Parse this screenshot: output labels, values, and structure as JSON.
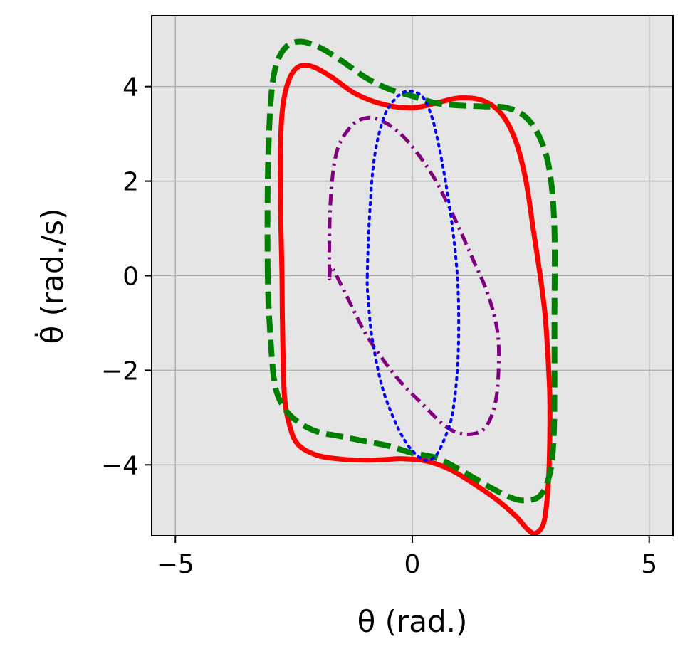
{
  "chart_data": {
    "type": "line",
    "title": "",
    "xlabel": "θ (rad.)",
    "ylabel": "θ̇ (rad./s)",
    "xlim": [
      -5.5,
      5.5
    ],
    "ylim": [
      -5.5,
      5.5
    ],
    "xticks": [
      -5,
      0,
      5
    ],
    "yticks": [
      -4,
      -2,
      0,
      2,
      4
    ],
    "xtick_labels": [
      "−5",
      "0",
      "5"
    ],
    "ytick_labels": [
      "−4",
      "−2",
      "0",
      "2",
      "4"
    ],
    "grid": true,
    "legend": "none",
    "background_color": "#e5e5e5",
    "grid_color": "#b0b0b0",
    "series": [
      {
        "color": "#ff0000",
        "style": "solid",
        "x": [
          -2.75,
          -2.78,
          -2.78,
          -2.73,
          -2.6,
          -2.4,
          -2.1,
          -1.7,
          -1.2,
          -0.6,
          0.0,
          0.5,
          1.0,
          1.5,
          1.9,
          2.2,
          2.4,
          2.55,
          2.7,
          2.8,
          2.85,
          2.9,
          2.9,
          2.87,
          2.78,
          2.6,
          2.42,
          2.2,
          1.8,
          1.3,
          0.8,
          0.3,
          -0.2,
          -0.6,
          -1.0,
          -1.5,
          -2.0,
          -2.4,
          -2.58,
          -2.7,
          -2.74,
          -2.75
        ],
        "y": [
          0.0,
          1.5,
          2.8,
          3.6,
          4.15,
          4.42,
          4.42,
          4.2,
          3.85,
          3.62,
          3.55,
          3.65,
          3.76,
          3.7,
          3.4,
          2.8,
          2.0,
          1.0,
          0.0,
          -0.8,
          -1.5,
          -2.5,
          -3.5,
          -4.4,
          -5.2,
          -5.45,
          -5.35,
          -5.1,
          -4.75,
          -4.4,
          -4.1,
          -3.92,
          -3.87,
          -3.89,
          -3.9,
          -3.88,
          -3.8,
          -3.58,
          -3.2,
          -2.5,
          -1.0,
          0.0
        ]
      },
      {
        "color": "#008000",
        "style": "dashed",
        "x": [
          -3.05,
          -3.05,
          -3.0,
          -2.9,
          -2.7,
          -2.4,
          -2.0,
          -1.5,
          -1.0,
          -0.5,
          0.0,
          0.5,
          1.0,
          1.5,
          2.0,
          2.4,
          2.7,
          2.9,
          3.0,
          3.0,
          3.0,
          2.98,
          2.9,
          2.7,
          2.4,
          2.1,
          1.6,
          1.0,
          0.5,
          0.0,
          -0.5,
          -1.0,
          -1.5,
          -2.0,
          -2.4,
          -2.7,
          -2.9,
          -3.0,
          -3.05
        ],
        "y": [
          0.0,
          2.0,
          3.5,
          4.35,
          4.8,
          4.95,
          4.85,
          4.55,
          4.2,
          3.95,
          3.8,
          3.65,
          3.6,
          3.58,
          3.55,
          3.35,
          2.9,
          2.2,
          1.0,
          -1.0,
          -2.5,
          -3.5,
          -4.2,
          -4.65,
          -4.75,
          -4.7,
          -4.45,
          -4.1,
          -3.85,
          -3.75,
          -3.6,
          -3.5,
          -3.4,
          -3.3,
          -3.1,
          -2.8,
          -2.3,
          -1.2,
          0.0
        ]
      },
      {
        "color": "#800080",
        "style": "dashdot",
        "x": [
          -1.75,
          -1.73,
          -1.6,
          -1.3,
          -1.0,
          -0.7,
          -0.3,
          0.1,
          0.5,
          0.9,
          1.3,
          1.6,
          1.8,
          1.82,
          1.75,
          1.55,
          1.25,
          0.9,
          0.6,
          0.2,
          -0.2,
          -0.6,
          -1.0,
          -1.35,
          -1.6,
          -1.72,
          -1.75
        ],
        "y": [
          0.0,
          1.5,
          2.6,
          3.15,
          3.33,
          3.3,
          3.05,
          2.6,
          2.0,
          1.2,
          0.3,
          -0.4,
          -1.2,
          -2.0,
          -2.7,
          -3.2,
          -3.35,
          -3.3,
          -3.1,
          -2.7,
          -2.3,
          -1.8,
          -1.2,
          -0.5,
          0.0,
          0.2,
          0.0
        ]
      },
      {
        "color": "#0000ff",
        "style": "dotted",
        "x": [
          -0.95,
          -0.9,
          -0.8,
          -0.6,
          -0.35,
          -0.1,
          0.2,
          0.4,
          0.55,
          0.7,
          0.85,
          0.95,
          0.98,
          0.95,
          0.85,
          0.7,
          0.5,
          0.3,
          0.1,
          -0.15,
          -0.4,
          -0.65,
          -0.85,
          -0.93,
          -0.95
        ],
        "y": [
          0.0,
          1.3,
          2.5,
          3.35,
          3.75,
          3.9,
          3.8,
          3.4,
          2.8,
          2.0,
          1.0,
          0.0,
          -1.0,
          -2.0,
          -2.9,
          -3.4,
          -3.8,
          -3.9,
          -3.8,
          -3.5,
          -3.0,
          -2.3,
          -1.3,
          -0.5,
          0.0
        ]
      }
    ]
  }
}
